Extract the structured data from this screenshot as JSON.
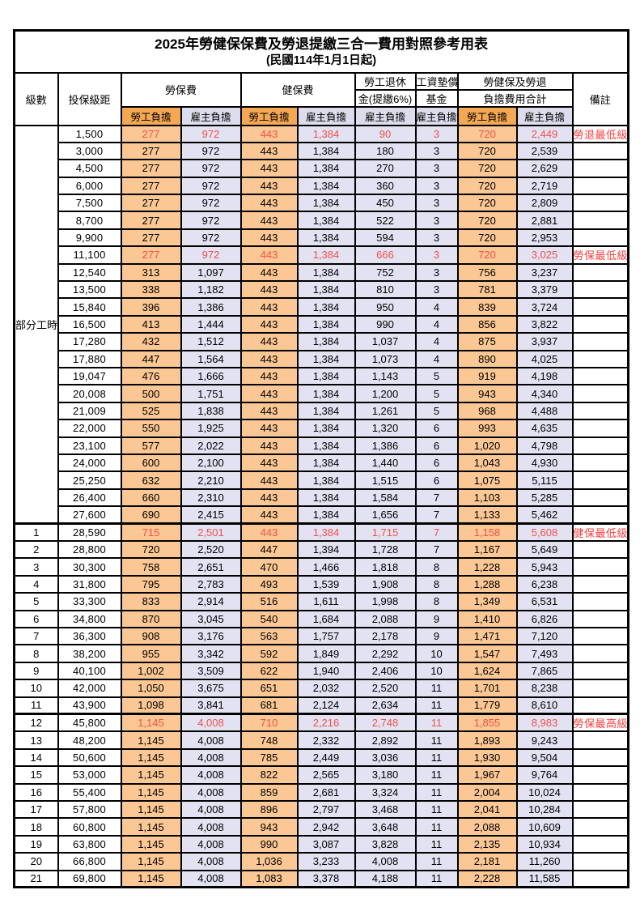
{
  "title": "2025年勞健保保費及勞退提繳三合一費用對照參考用表",
  "subtitle": "(民國114年1月1日起)",
  "colors": {
    "employee_cell": "#fbc794",
    "employer_cell": "#e2e2f2",
    "employee_header": "#f5a854",
    "employer_header": "#dcdcec",
    "highlight_text": "#f25049",
    "remark_text": "#fa3e3e",
    "grid": "#000000"
  },
  "header": {
    "level": "級數",
    "bracket": "投保級距",
    "labor_insurance": "勞保費",
    "health_insurance": "健保費",
    "pension_line1": "勞工退休",
    "pension_line2": "金(提繳6%)",
    "wage_fund_line1": "工資墊償",
    "wage_fund_line2": "基金",
    "total_line1": "勞健保及勞退",
    "total_line2": "負擔費用合計",
    "remark": "備註",
    "employee": "勞工負擔",
    "employer": "雇主負擔"
  },
  "part_time": {
    "label": "部分工時",
    "rowspan": 23
  },
  "rows": [
    {
      "level": "",
      "bracket": "1,500",
      "labor_emp": "277",
      "labor_er": "972",
      "health_emp": "443",
      "health_er": "1,384",
      "pension": "90",
      "fund": "3",
      "total_emp": "720",
      "total_er": "2,449",
      "remark": "勞退最低級距",
      "red": true
    },
    {
      "level": "",
      "bracket": "3,000",
      "labor_emp": "277",
      "labor_er": "972",
      "health_emp": "443",
      "health_er": "1,384",
      "pension": "180",
      "fund": "3",
      "total_emp": "720",
      "total_er": "2,539",
      "remark": "",
      "red": false
    },
    {
      "level": "",
      "bracket": "4,500",
      "labor_emp": "277",
      "labor_er": "972",
      "health_emp": "443",
      "health_er": "1,384",
      "pension": "270",
      "fund": "3",
      "total_emp": "720",
      "total_er": "2,629",
      "remark": "",
      "red": false
    },
    {
      "level": "",
      "bracket": "6,000",
      "labor_emp": "277",
      "labor_er": "972",
      "health_emp": "443",
      "health_er": "1,384",
      "pension": "360",
      "fund": "3",
      "total_emp": "720",
      "total_er": "2,719",
      "remark": "",
      "red": false
    },
    {
      "level": "",
      "bracket": "7,500",
      "labor_emp": "277",
      "labor_er": "972",
      "health_emp": "443",
      "health_er": "1,384",
      "pension": "450",
      "fund": "3",
      "total_emp": "720",
      "total_er": "2,809",
      "remark": "",
      "red": false
    },
    {
      "level": "",
      "bracket": "8,700",
      "labor_emp": "277",
      "labor_er": "972",
      "health_emp": "443",
      "health_er": "1,384",
      "pension": "522",
      "fund": "3",
      "total_emp": "720",
      "total_er": "2,881",
      "remark": "",
      "red": false
    },
    {
      "level": "",
      "bracket": "9,900",
      "labor_emp": "277",
      "labor_er": "972",
      "health_emp": "443",
      "health_er": "1,384",
      "pension": "594",
      "fund": "3",
      "total_emp": "720",
      "total_er": "2,953",
      "remark": "",
      "red": false
    },
    {
      "level": "",
      "bracket": "11,100",
      "labor_emp": "277",
      "labor_er": "972",
      "health_emp": "443",
      "health_er": "1,384",
      "pension": "666",
      "fund": "3",
      "total_emp": "720",
      "total_er": "3,025",
      "remark": "勞保最低級距",
      "red": true
    },
    {
      "level": "",
      "bracket": "12,540",
      "labor_emp": "313",
      "labor_er": "1,097",
      "health_emp": "443",
      "health_er": "1,384",
      "pension": "752",
      "fund": "3",
      "total_emp": "756",
      "total_er": "3,237",
      "remark": "",
      "red": false
    },
    {
      "level": "",
      "bracket": "13,500",
      "labor_emp": "338",
      "labor_er": "1,182",
      "health_emp": "443",
      "health_er": "1,384",
      "pension": "810",
      "fund": "3",
      "total_emp": "781",
      "total_er": "3,379",
      "remark": "",
      "red": false
    },
    {
      "level": "",
      "bracket": "15,840",
      "labor_emp": "396",
      "labor_er": "1,386",
      "health_emp": "443",
      "health_er": "1,384",
      "pension": "950",
      "fund": "4",
      "total_emp": "839",
      "total_er": "3,724",
      "remark": "",
      "red": false
    },
    {
      "level": "",
      "bracket": "16,500",
      "labor_emp": "413",
      "labor_er": "1,444",
      "health_emp": "443",
      "health_er": "1,384",
      "pension": "990",
      "fund": "4",
      "total_emp": "856",
      "total_er": "3,822",
      "remark": "",
      "red": false
    },
    {
      "level": "",
      "bracket": "17,280",
      "labor_emp": "432",
      "labor_er": "1,512",
      "health_emp": "443",
      "health_er": "1,384",
      "pension": "1,037",
      "fund": "4",
      "total_emp": "875",
      "total_er": "3,937",
      "remark": "",
      "red": false
    },
    {
      "level": "",
      "bracket": "17,880",
      "labor_emp": "447",
      "labor_er": "1,564",
      "health_emp": "443",
      "health_er": "1,384",
      "pension": "1,073",
      "fund": "4",
      "total_emp": "890",
      "total_er": "4,025",
      "remark": "",
      "red": false
    },
    {
      "level": "",
      "bracket": "19,047",
      "labor_emp": "476",
      "labor_er": "1,666",
      "health_emp": "443",
      "health_er": "1,384",
      "pension": "1,143",
      "fund": "5",
      "total_emp": "919",
      "total_er": "4,198",
      "remark": "",
      "red": false
    },
    {
      "level": "",
      "bracket": "20,008",
      "labor_emp": "500",
      "labor_er": "1,751",
      "health_emp": "443",
      "health_er": "1,384",
      "pension": "1,200",
      "fund": "5",
      "total_emp": "943",
      "total_er": "4,340",
      "remark": "",
      "red": false
    },
    {
      "level": "",
      "bracket": "21,009",
      "labor_emp": "525",
      "labor_er": "1,838",
      "health_emp": "443",
      "health_er": "1,384",
      "pension": "1,261",
      "fund": "5",
      "total_emp": "968",
      "total_er": "4,488",
      "remark": "",
      "red": false
    },
    {
      "level": "",
      "bracket": "22,000",
      "labor_emp": "550",
      "labor_er": "1,925",
      "health_emp": "443",
      "health_er": "1,384",
      "pension": "1,320",
      "fund": "6",
      "total_emp": "993",
      "total_er": "4,635",
      "remark": "",
      "red": false
    },
    {
      "level": "",
      "bracket": "23,100",
      "labor_emp": "577",
      "labor_er": "2,022",
      "health_emp": "443",
      "health_er": "1,384",
      "pension": "1,386",
      "fund": "6",
      "total_emp": "1,020",
      "total_er": "4,798",
      "remark": "",
      "red": false
    },
    {
      "level": "",
      "bracket": "24,000",
      "labor_emp": "600",
      "labor_er": "2,100",
      "health_emp": "443",
      "health_er": "1,384",
      "pension": "1,440",
      "fund": "6",
      "total_emp": "1,043",
      "total_er": "4,930",
      "remark": "",
      "red": false
    },
    {
      "level": "",
      "bracket": "25,250",
      "labor_emp": "632",
      "labor_er": "2,210",
      "health_emp": "443",
      "health_er": "1,384",
      "pension": "1,515",
      "fund": "6",
      "total_emp": "1,075",
      "total_er": "5,115",
      "remark": "",
      "red": false
    },
    {
      "level": "",
      "bracket": "26,400",
      "labor_emp": "660",
      "labor_er": "2,310",
      "health_emp": "443",
      "health_er": "1,384",
      "pension": "1,584",
      "fund": "7",
      "total_emp": "1,103",
      "total_er": "5,285",
      "remark": "",
      "red": false
    },
    {
      "level": "",
      "bracket": "27,600",
      "labor_emp": "690",
      "labor_er": "2,415",
      "health_emp": "443",
      "health_er": "1,384",
      "pension": "1,656",
      "fund": "7",
      "total_emp": "1,133",
      "total_er": "5,462",
      "remark": "",
      "red": false
    },
    {
      "level": "1",
      "bracket": "28,590",
      "labor_emp": "715",
      "labor_er": "2,501",
      "health_emp": "443",
      "health_er": "1,384",
      "pension": "1,715",
      "fund": "7",
      "total_emp": "1,158",
      "total_er": "5,608",
      "remark": "健保最低級距",
      "red": true
    },
    {
      "level": "2",
      "bracket": "28,800",
      "labor_emp": "720",
      "labor_er": "2,520",
      "health_emp": "447",
      "health_er": "1,394",
      "pension": "1,728",
      "fund": "7",
      "total_emp": "1,167",
      "total_er": "5,649",
      "remark": "",
      "red": false
    },
    {
      "level": "3",
      "bracket": "30,300",
      "labor_emp": "758",
      "labor_er": "2,651",
      "health_emp": "470",
      "health_er": "1,466",
      "pension": "1,818",
      "fund": "8",
      "total_emp": "1,228",
      "total_er": "5,943",
      "remark": "",
      "red": false
    },
    {
      "level": "4",
      "bracket": "31,800",
      "labor_emp": "795",
      "labor_er": "2,783",
      "health_emp": "493",
      "health_er": "1,539",
      "pension": "1,908",
      "fund": "8",
      "total_emp": "1,288",
      "total_er": "6,238",
      "remark": "",
      "red": false
    },
    {
      "level": "5",
      "bracket": "33,300",
      "labor_emp": "833",
      "labor_er": "2,914",
      "health_emp": "516",
      "health_er": "1,611",
      "pension": "1,998",
      "fund": "8",
      "total_emp": "1,349",
      "total_er": "6,531",
      "remark": "",
      "red": false
    },
    {
      "level": "6",
      "bracket": "34,800",
      "labor_emp": "870",
      "labor_er": "3,045",
      "health_emp": "540",
      "health_er": "1,684",
      "pension": "2,088",
      "fund": "9",
      "total_emp": "1,410",
      "total_er": "6,826",
      "remark": "",
      "red": false
    },
    {
      "level": "7",
      "bracket": "36,300",
      "labor_emp": "908",
      "labor_er": "3,176",
      "health_emp": "563",
      "health_er": "1,757",
      "pension": "2,178",
      "fund": "9",
      "total_emp": "1,471",
      "total_er": "7,120",
      "remark": "",
      "red": false
    },
    {
      "level": "8",
      "bracket": "38,200",
      "labor_emp": "955",
      "labor_er": "3,342",
      "health_emp": "592",
      "health_er": "1,849",
      "pension": "2,292",
      "fund": "10",
      "total_emp": "1,547",
      "total_er": "7,493",
      "remark": "",
      "red": false
    },
    {
      "level": "9",
      "bracket": "40,100",
      "labor_emp": "1,002",
      "labor_er": "3,509",
      "health_emp": "622",
      "health_er": "1,940",
      "pension": "2,406",
      "fund": "10",
      "total_emp": "1,624",
      "total_er": "7,865",
      "remark": "",
      "red": false
    },
    {
      "level": "10",
      "bracket": "42,000",
      "labor_emp": "1,050",
      "labor_er": "3,675",
      "health_emp": "651",
      "health_er": "2,032",
      "pension": "2,520",
      "fund": "11",
      "total_emp": "1,701",
      "total_er": "8,238",
      "remark": "",
      "red": false
    },
    {
      "level": "11",
      "bracket": "43,900",
      "labor_emp": "1,098",
      "labor_er": "3,841",
      "health_emp": "681",
      "health_er": "2,124",
      "pension": "2,634",
      "fund": "11",
      "total_emp": "1,779",
      "total_er": "8,610",
      "remark": "",
      "red": false
    },
    {
      "level": "12",
      "bracket": "45,800",
      "labor_emp": "1,145",
      "labor_er": "4,008",
      "health_emp": "710",
      "health_er": "2,216",
      "pension": "2,748",
      "fund": "11",
      "total_emp": "1,855",
      "total_er": "8,983",
      "remark": "勞保最高級距",
      "red": true
    },
    {
      "level": "13",
      "bracket": "48,200",
      "labor_emp": "1,145",
      "labor_er": "4,008",
      "health_emp": "748",
      "health_er": "2,332",
      "pension": "2,892",
      "fund": "11",
      "total_emp": "1,893",
      "total_er": "9,243",
      "remark": "",
      "red": false
    },
    {
      "level": "14",
      "bracket": "50,600",
      "labor_emp": "1,145",
      "labor_er": "4,008",
      "health_emp": "785",
      "health_er": "2,449",
      "pension": "3,036",
      "fund": "11",
      "total_emp": "1,930",
      "total_er": "9,504",
      "remark": "",
      "red": false
    },
    {
      "level": "15",
      "bracket": "53,000",
      "labor_emp": "1,145",
      "labor_er": "4,008",
      "health_emp": "822",
      "health_er": "2,565",
      "pension": "3,180",
      "fund": "11",
      "total_emp": "1,967",
      "total_er": "9,764",
      "remark": "",
      "red": false
    },
    {
      "level": "16",
      "bracket": "55,400",
      "labor_emp": "1,145",
      "labor_er": "4,008",
      "health_emp": "859",
      "health_er": "2,681",
      "pension": "3,324",
      "fund": "11",
      "total_emp": "2,004",
      "total_er": "10,024",
      "remark": "",
      "red": false
    },
    {
      "level": "17",
      "bracket": "57,800",
      "labor_emp": "1,145",
      "labor_er": "4,008",
      "health_emp": "896",
      "health_er": "2,797",
      "pension": "3,468",
      "fund": "11",
      "total_emp": "2,041",
      "total_er": "10,284",
      "remark": "",
      "red": false
    },
    {
      "level": "18",
      "bracket": "60,800",
      "labor_emp": "1,145",
      "labor_er": "4,008",
      "health_emp": "943",
      "health_er": "2,942",
      "pension": "3,648",
      "fund": "11",
      "total_emp": "2,088",
      "total_er": "10,609",
      "remark": "",
      "red": false
    },
    {
      "level": "19",
      "bracket": "63,800",
      "labor_emp": "1,145",
      "labor_er": "4,008",
      "health_emp": "990",
      "health_er": "3,087",
      "pension": "3,828",
      "fund": "11",
      "total_emp": "2,135",
      "total_er": "10,934",
      "remark": "",
      "red": false
    },
    {
      "level": "20",
      "bracket": "66,800",
      "labor_emp": "1,145",
      "labor_er": "4,008",
      "health_emp": "1,036",
      "health_er": "3,233",
      "pension": "4,008",
      "fund": "11",
      "total_emp": "2,181",
      "total_er": "11,260",
      "remark": "",
      "red": false
    },
    {
      "level": "21",
      "bracket": "69,800",
      "labor_emp": "1,145",
      "labor_er": "4,008",
      "health_emp": "1,083",
      "health_er": "3,378",
      "pension": "4,188",
      "fund": "11",
      "total_emp": "2,228",
      "total_er": "11,585",
      "remark": "",
      "red": false
    }
  ]
}
